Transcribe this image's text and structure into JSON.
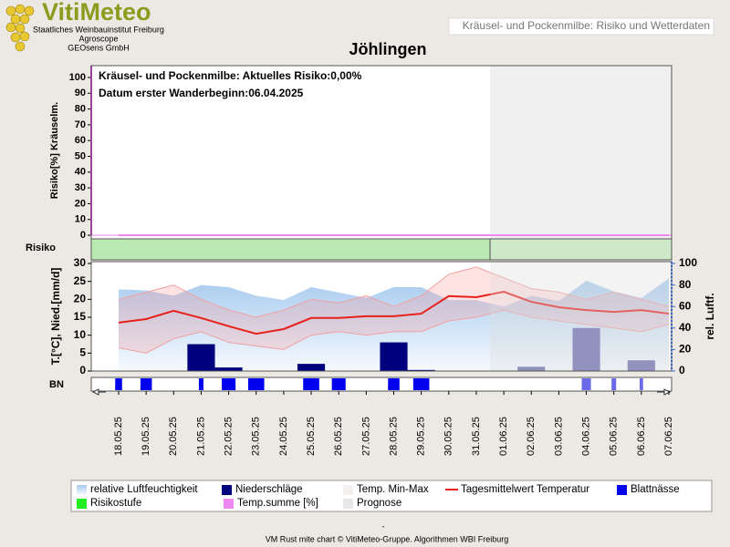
{
  "header": {
    "logo": "VitiMeteo",
    "institutions": [
      "Staatliches Weinbauinstitut Freiburg",
      "Agroscope",
      "GEOsens GmbH"
    ],
    "banner": "Kräusel- und Pockenmilbe: Risiko und Wetterdaten"
  },
  "chart_data": [
    {
      "type": "line",
      "title": "Jöhlingen",
      "ylabel": "Risiko[%] Kräuselm.",
      "annotations": [
        "Kräusel- und Pockenmilbe: Aktuelles Risiko:0,00%",
        "Datum erster Wanderbeginn:06.04.2025"
      ],
      "ylim": [
        0,
        107.5
      ],
      "yticks": [
        0,
        10,
        20,
        30,
        40,
        50,
        60,
        70,
        80,
        90,
        100
      ],
      "series": [
        {
          "name": "Temp.summe [%]",
          "color": "#ee88ee",
          "values": [
            0,
            0,
            0,
            0,
            0,
            0,
            0,
            0,
            0,
            0,
            0,
            0,
            0,
            0,
            0,
            0,
            0,
            0,
            0,
            0,
            0
          ]
        }
      ]
    },
    {
      "type": "combo",
      "ylabel": "T.[°C], Nied.[mm/d]",
      "y2label": "rel. Luftf.",
      "band_label": "Risiko",
      "bn_label": "BN",
      "categories": [
        "18.05.25",
        "19.05.25",
        "20.05.25",
        "21.05.25",
        "22.05.25",
        "23.05.25",
        "24.05.25",
        "25.05.25",
        "26.05.25",
        "27.05.25",
        "28.05.25",
        "29.05.25",
        "30.05.25",
        "31.05.25",
        "01.06.25",
        "02.06.25",
        "03.06.25",
        "04.06.25",
        "05.06.25",
        "06.06.25",
        "07.06.25"
      ],
      "ylim": [
        0,
        30
      ],
      "yticks": [
        0,
        5,
        10,
        15,
        20,
        25,
        30
      ],
      "y2lim": [
        0,
        100
      ],
      "y2ticks": [
        0,
        20,
        40,
        60,
        80,
        100
      ],
      "series": [
        {
          "name": "relative Luftfeuchtigkeit",
          "color": "#a8cbef",
          "axis": "y2",
          "values": [
            76,
            75,
            70,
            80,
            78,
            70,
            66,
            78,
            73,
            68,
            78,
            78,
            66,
            66,
            60,
            70,
            65,
            84,
            74,
            68,
            86
          ]
        },
        {
          "name": "Niederschläge",
          "color": "#00007f",
          "values": [
            0,
            0,
            0,
            7.5,
            1,
            0,
            0,
            2,
            0,
            0,
            8,
            0.3,
            0,
            0,
            0,
            1.2,
            0,
            12,
            0,
            3,
            0
          ]
        },
        {
          "name": "Temp. Min-Max",
          "color": "#f0a0a0",
          "low": [
            6.5,
            5,
            9,
            11,
            8,
            7,
            6,
            10,
            11,
            10,
            11,
            11,
            14,
            15,
            17,
            15,
            14,
            13,
            12,
            11,
            13
          ],
          "high": [
            20,
            22,
            24,
            20,
            17,
            15,
            17,
            20,
            19,
            21,
            18,
            21,
            27,
            29,
            26,
            23,
            22,
            20,
            22,
            20,
            18
          ]
        },
        {
          "name": "Tagesmittelwert Temperatur",
          "color": "#e8201a",
          "values": [
            13.5,
            14.5,
            16.8,
            14.8,
            12.5,
            10.4,
            11.7,
            14.8,
            14.8,
            15.3,
            15.3,
            16,
            20.9,
            20.6,
            22.1,
            19.3,
            17.8,
            17,
            16.5,
            17,
            16
          ]
        },
        {
          "name": "Blattnässe",
          "color": "#0000ee",
          "values": [
            6,
            10,
            0,
            4,
            12,
            14,
            0,
            14,
            12,
            0,
            10,
            14,
            0,
            0,
            0,
            0,
            0,
            8,
            4,
            3,
            0
          ]
        },
        {
          "name": "Risikostufe",
          "color": "#22ee22"
        },
        {
          "name": "Prognose",
          "color": "#e8e8e8",
          "from": "01.06.25"
        }
      ]
    }
  ],
  "footer": {
    "mark": "-",
    "credit": "VM Rust mite chart © VitiMeteo-Gruppe. Algorithmen WBI Freiburg"
  }
}
